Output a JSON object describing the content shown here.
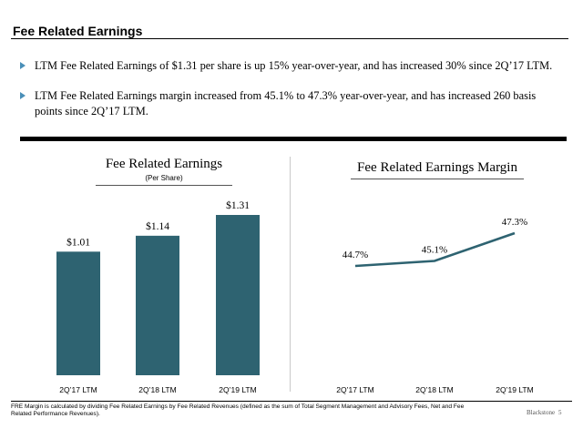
{
  "page": {
    "title": "Fee Related Earnings",
    "bullets": [
      "LTM Fee Related Earnings of $1.31 per share is up 15% year-over-year, and has increased 30% since 2Q’17 LTM.",
      "LTM Fee Related Earnings margin increased from 45.1% to 47.3% year-over-year, and has increased 260 basis points since 2Q’17 LTM."
    ],
    "footnote": "FRE Margin is calculated by dividing Fee Related Earnings by Fee Related Revenues (defined as the sum of Total Segment Management and Advisory Fees, Net and Fee Related Performance Revenues).",
    "brand": "Blackstone",
    "page_number": "5"
  },
  "chart_data": [
    {
      "type": "bar",
      "title": "Fee Related Earnings",
      "subtitle": "(Per Share)",
      "categories": [
        "2Q’17 LTM",
        "2Q’18 LTM",
        "2Q’19 LTM"
      ],
      "values": [
        1.01,
        1.14,
        1.31
      ],
      "data_labels": [
        "$1.01",
        "$1.14",
        "$1.31"
      ],
      "color": "#2e6371",
      "ylim": [
        0,
        1.31
      ]
    },
    {
      "type": "line",
      "title": "Fee Related Earnings Margin",
      "categories": [
        "2Q’17 LTM",
        "2Q’18 LTM",
        "2Q’19 LTM"
      ],
      "values": [
        44.7,
        45.1,
        47.3
      ],
      "data_labels": [
        "44.7%",
        "45.1%",
        "47.3%"
      ],
      "color": "#2e6371"
    }
  ]
}
